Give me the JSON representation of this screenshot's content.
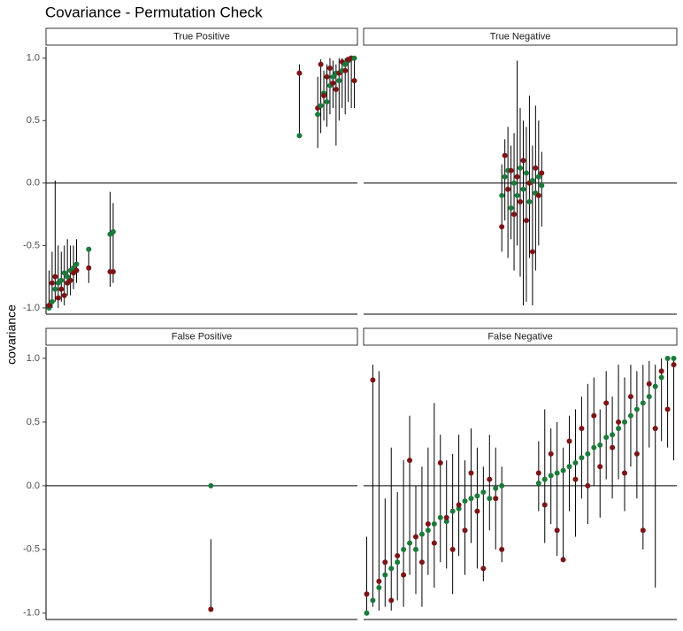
{
  "chart_data": {
    "type": "scatter",
    "title": "Covariance - Permutation Check",
    "ylabel": "covariance",
    "ylim": [
      -1.05,
      1.09
    ],
    "yticks": [
      {
        "value": -1,
        "label": "-1.0"
      },
      -0.5,
      {
        "value": 0,
        "label": "0.0"
      },
      0.5,
      {
        "value": 1,
        "label": "1.0"
      }
    ],
    "xlim": [
      -1,
      101
    ],
    "hline": 0,
    "observed_color": "#7b1416",
    "permuted_color": "#1b7a3a",
    "line_color": "#000000",
    "panels": [
      {
        "label": "True Positive",
        "x": [
          0,
          1,
          2,
          3,
          4,
          5,
          6,
          7,
          8,
          9,
          13,
          20,
          21,
          82,
          88,
          89,
          90,
          91,
          92,
          93,
          94,
          95,
          96,
          97,
          98,
          99,
          100
        ],
        "observed": [
          -0.98,
          -0.8,
          -0.75,
          -0.92,
          -0.85,
          -0.9,
          -0.8,
          -0.78,
          -0.72,
          -0.7,
          -0.68,
          -0.71,
          -0.71,
          0.88,
          0.6,
          0.95,
          0.7,
          0.85,
          0.92,
          0.8,
          0.75,
          0.88,
          0.97,
          0.9,
          0.99,
          1.0,
          0.82
        ],
        "permuted": [
          -1.0,
          -0.95,
          -0.85,
          -0.8,
          -0.78,
          -0.72,
          -0.75,
          -0.7,
          -0.68,
          -0.65,
          -0.53,
          -0.41,
          -0.39,
          0.38,
          0.55,
          0.62,
          0.72,
          0.65,
          0.78,
          0.85,
          0.88,
          0.82,
          0.9,
          0.95,
          0.98,
          1.0,
          1.0
        ],
        "lower": [
          -1.0,
          -1.0,
          -0.95,
          -1.0,
          -0.95,
          -0.98,
          -0.9,
          -0.9,
          -0.85,
          -0.8,
          -0.8,
          -0.83,
          -0.8,
          0.38,
          0.28,
          0.4,
          0.5,
          0.45,
          0.55,
          0.6,
          0.3,
          0.5,
          0.6,
          0.55,
          0.65,
          0.6,
          0.6
        ],
        "upper": [
          -0.7,
          -0.55,
          0.02,
          -0.5,
          -0.55,
          -0.5,
          -0.45,
          -0.5,
          -0.5,
          -0.45,
          -0.53,
          -0.07,
          -0.16,
          0.95,
          0.85,
          0.99,
          0.9,
          0.95,
          1.0,
          0.98,
          0.95,
          1.0,
          1.0,
          1.0,
          1.0,
          1.0,
          1.0
        ]
      },
      {
        "label": "True Negative",
        "x": [
          44,
          45,
          46,
          47,
          48,
          49,
          50,
          51,
          52,
          53,
          54,
          55,
          56,
          57
        ],
        "observed": [
          -0.35,
          0.22,
          -0.05,
          0.1,
          -0.25,
          0.05,
          -0.15,
          0.18,
          -0.3,
          0.0,
          -0.55,
          0.12,
          -0.1,
          0.08
        ],
        "permuted": [
          -0.1,
          0.05,
          0.1,
          -0.2,
          0.0,
          -0.1,
          0.12,
          -0.05,
          0.08,
          -0.15,
          0.02,
          -0.08,
          0.05,
          -0.02
        ],
        "lower": [
          -0.55,
          -0.3,
          -0.6,
          -0.45,
          -0.7,
          -0.5,
          -0.75,
          -0.98,
          -0.95,
          -0.6,
          -0.98,
          -0.7,
          -0.5,
          -0.35
        ],
        "upper": [
          0.15,
          0.35,
          0.45,
          0.3,
          0.4,
          0.98,
          0.6,
          0.5,
          0.45,
          0.7,
          0.3,
          0.62,
          0.5,
          0.25
        ]
      },
      {
        "label": "False Positive",
        "x": [
          53
        ],
        "observed": [
          -0.97
        ],
        "permuted": [
          0.0
        ],
        "lower": [
          -0.97
        ],
        "upper": [
          -0.42
        ]
      },
      {
        "label": "False Negative",
        "x": [
          0,
          2,
          4,
          6,
          8,
          10,
          12,
          14,
          16,
          18,
          20,
          22,
          24,
          26,
          28,
          30,
          32,
          34,
          36,
          38,
          40,
          42,
          44,
          56,
          58,
          60,
          62,
          64,
          66,
          68,
          70,
          72,
          74,
          76,
          78,
          80,
          82,
          84,
          86,
          88,
          90,
          92,
          94,
          96,
          98,
          100
        ],
        "observed": [
          -0.85,
          0.83,
          -0.75,
          -0.6,
          -0.9,
          -0.55,
          -0.7,
          0.2,
          -0.4,
          -0.6,
          -0.3,
          -0.45,
          0.18,
          -0.25,
          -0.5,
          -0.15,
          -0.35,
          0.1,
          -0.2,
          -0.65,
          0.05,
          -0.1,
          -0.5,
          0.1,
          -0.15,
          0.25,
          -0.35,
          -0.58,
          0.35,
          0.05,
          0.45,
          0.0,
          0.55,
          0.15,
          0.65,
          0.3,
          0.5,
          0.1,
          0.7,
          0.25,
          -0.35,
          0.8,
          0.45,
          0.9,
          0.6,
          0.95
        ],
        "permuted": [
          -1.0,
          -0.9,
          -0.8,
          -0.7,
          -0.65,
          -0.6,
          -0.5,
          -0.45,
          -0.5,
          -0.38,
          -0.35,
          -0.3,
          -0.25,
          -0.28,
          -0.2,
          -0.18,
          -0.12,
          -0.1,
          -0.08,
          -0.05,
          -0.1,
          -0.02,
          0.0,
          0.02,
          0.05,
          0.08,
          0.1,
          0.12,
          0.15,
          0.18,
          0.22,
          0.25,
          0.3,
          0.32,
          0.38,
          0.4,
          0.45,
          0.5,
          0.55,
          0.6,
          0.65,
          0.7,
          0.78,
          0.85,
          1.0,
          1.0
        ],
        "lower": [
          -1.0,
          -0.95,
          -0.98,
          -0.95,
          -0.98,
          -0.9,
          -0.95,
          -0.7,
          -0.85,
          -0.95,
          -0.7,
          -0.8,
          -0.6,
          -0.65,
          -0.85,
          -0.55,
          -0.7,
          -0.45,
          -0.65,
          -0.75,
          -0.35,
          -0.5,
          -0.6,
          -0.2,
          -0.45,
          -0.3,
          -0.55,
          -0.6,
          -0.2,
          -0.4,
          -0.1,
          -0.3,
          0.0,
          -0.25,
          0.05,
          -0.1,
          0.05,
          -0.2,
          0.15,
          -0.1,
          -0.5,
          0.3,
          -0.8,
          0.35,
          0.3,
          0.2
        ],
        "upper": [
          -0.4,
          0.95,
          0.9,
          -0.1,
          0.3,
          -0.05,
          0.2,
          0.55,
          0.0,
          0.15,
          0.3,
          0.65,
          0.4,
          0.2,
          0.25,
          0.4,
          0.2,
          0.45,
          0.3,
          0.15,
          0.4,
          0.3,
          0.15,
          0.35,
          0.6,
          0.45,
          0.5,
          0.3,
          0.55,
          0.6,
          0.7,
          0.8,
          0.85,
          0.6,
          0.9,
          0.7,
          0.95,
          0.85,
          0.95,
          0.9,
          0.95,
          0.98,
          0.95,
          1.0,
          1.0,
          1.0
        ]
      }
    ]
  }
}
